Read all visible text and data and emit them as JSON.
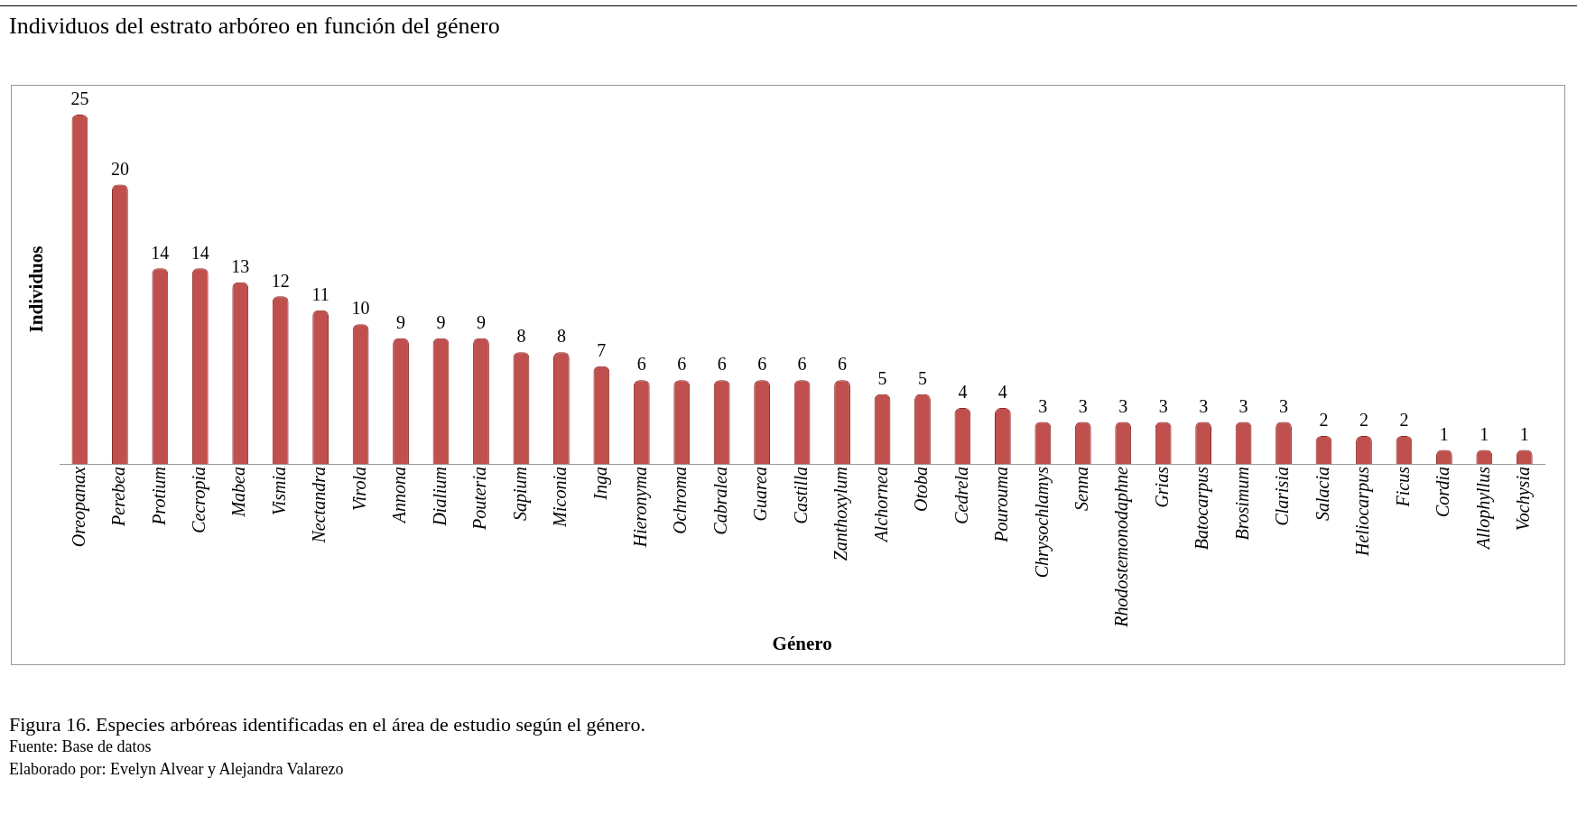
{
  "chart_data": {
    "type": "bar",
    "title": "Individuos del estrato arbóreo en función del género",
    "xlabel": "Género",
    "ylabel": "Individuos",
    "categories": [
      "Oreopanax",
      "Perebea",
      "Protium",
      "Cecropia",
      "Mabea",
      "Vismia",
      "Nectandra",
      "Virola",
      "Annona",
      "Dialium",
      "Pouteria",
      "Sapium",
      "Miconia",
      "Inga",
      "Hieronyma",
      "Ochroma",
      "Cabralea",
      "Guarea",
      "Castilla",
      "Zanthoxylum",
      "Alchornea",
      "Otoba",
      "Cedrela",
      "Pourouma",
      "Chrysochlamys",
      "Senna",
      "Rhodostemonodaphne",
      "Grias",
      "Batocarpus",
      "Brosimum",
      "Clarisia",
      "Salacia",
      "Heliocarpus",
      "Ficus",
      "Cordia",
      "Allophyllus",
      "Vochysia"
    ],
    "values": [
      25,
      20,
      14,
      14,
      13,
      12,
      11,
      10,
      9,
      9,
      9,
      8,
      8,
      7,
      6,
      6,
      6,
      6,
      6,
      6,
      5,
      5,
      4,
      4,
      3,
      3,
      3,
      3,
      3,
      3,
      3,
      2,
      2,
      2,
      1,
      1,
      1
    ],
    "color": "#c0504d",
    "data_labels": true,
    "tick_labels": "x",
    "annotations": [
      "Figura 16. Especies arbóreas identificadas en el área de estudio según el género.",
      "Fuente: Base de datos",
      "Elaborado por: Evelyn Alvear y Alejandra Valarezo"
    ]
  }
}
